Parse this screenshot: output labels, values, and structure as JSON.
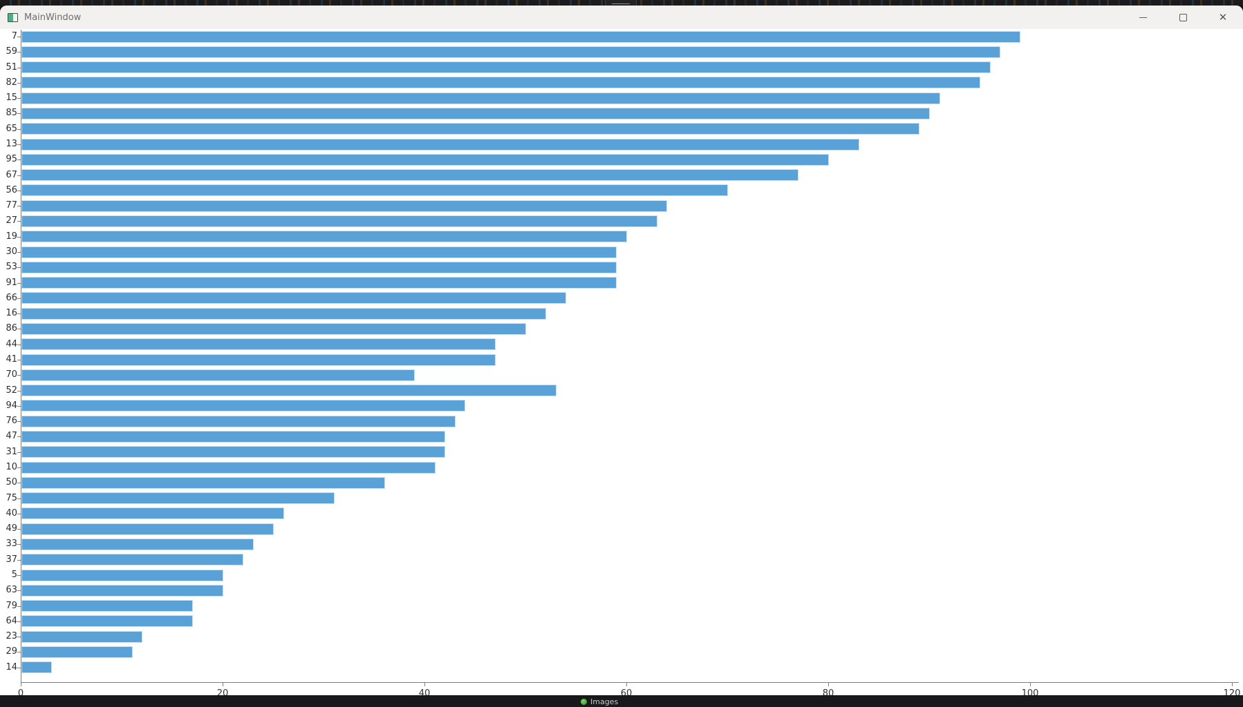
{
  "window": {
    "title": "MainWindow",
    "controls": {
      "close_glyph": "✕"
    }
  },
  "taskbar": {
    "images_label": "Images"
  },
  "chart_data": {
    "type": "bar",
    "orientation": "horizontal",
    "title": "",
    "xlabel": "",
    "ylabel": "",
    "xlim": [
      0,
      120
    ],
    "x_ticks": [
      0,
      20,
      40,
      60,
      80,
      100,
      120
    ],
    "grid": false,
    "legend": false,
    "bar_color": "#59a1d6",
    "bar_edge_color": "#c9e0f2",
    "categories": [
      "7",
      "59",
      "51",
      "82",
      "15",
      "85",
      "65",
      "13",
      "95",
      "67",
      "56",
      "77",
      "27",
      "19",
      "30",
      "53",
      "91",
      "66",
      "16",
      "86",
      "44",
      "41",
      "70",
      "52",
      "94",
      "76",
      "47",
      "31",
      "10",
      "50",
      "75",
      "40",
      "49",
      "33",
      "37",
      "5",
      "63",
      "79",
      "64",
      "23",
      "29",
      "14"
    ],
    "values": [
      99,
      97,
      96,
      95,
      91,
      90,
      89,
      83,
      80,
      77,
      70,
      64,
      63,
      60,
      59,
      59,
      59,
      54,
      52,
      50,
      47,
      47,
      39,
      53,
      44,
      43,
      42,
      42,
      41,
      36,
      31,
      26,
      25,
      23,
      22,
      20,
      20,
      17,
      17,
      12,
      11,
      3
    ]
  }
}
